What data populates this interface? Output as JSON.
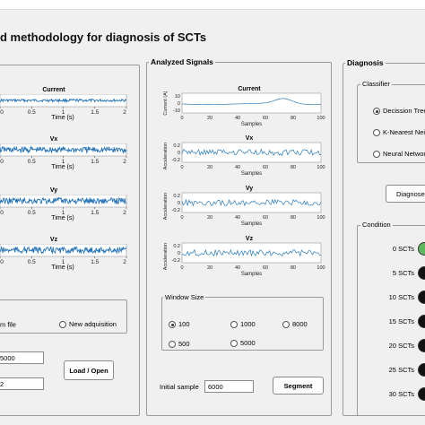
{
  "app": {
    "title": "d methodology for diagnosis of SCTs"
  },
  "left_panel": {
    "charts": [
      {
        "title": "Current",
        "xlabel": "Time (s)",
        "ticks": [
          "0",
          "0.5",
          "1",
          "1.5",
          "2"
        ]
      },
      {
        "title": "Vx",
        "xlabel": "Time (s)",
        "ticks": [
          "0",
          "0.5",
          "1",
          "1.5",
          "2"
        ]
      },
      {
        "title": "Vy",
        "xlabel": "Time (s)",
        "ticks": [
          "0",
          "0.5",
          "1",
          "1.5",
          "2"
        ]
      },
      {
        "title": "Vz",
        "xlabel": "Time (s)",
        "ticks": [
          "0",
          "0.5",
          "1",
          "1.5",
          "2"
        ]
      }
    ],
    "source": {
      "option_file": "m file",
      "option_new": "New adquisition"
    },
    "field_1": "5000",
    "field_2": "2",
    "load_button": "Load / Open"
  },
  "analyzed": {
    "title": "Analyzed Signals",
    "charts": [
      {
        "title": "Current",
        "ylabel": "Current (A)",
        "xlabel": "Samples",
        "yticks": [
          "10",
          "0",
          "-10"
        ]
      },
      {
        "title": "Vx",
        "ylabel": "Acceleration (g)",
        "xlabel": "Samples",
        "yticks": [
          "0.2",
          "0",
          "-0.2"
        ]
      },
      {
        "title": "Vy",
        "ylabel": "Acceleration (g)",
        "xlabel": "Samples",
        "yticks": [
          "0.2",
          "0",
          "-0.2"
        ]
      },
      {
        "title": "Vz",
        "ylabel": "Acceleration (g)",
        "xlabel": "Samples",
        "yticks": [
          "0.2",
          "0",
          "-0.2"
        ]
      }
    ],
    "xticks": [
      "0",
      "20",
      "40",
      "60",
      "80",
      "100"
    ],
    "window_size": {
      "title": "Window Size",
      "options": [
        "100",
        "1000",
        "8000",
        "500",
        "5000"
      ],
      "selected": "100"
    },
    "initial_sample_label": "Initial sample",
    "initial_sample_value": "6000",
    "segment_button": "Segment"
  },
  "diagnosis": {
    "title": "Diagnosis",
    "classifier_title": "Classifier",
    "classifiers": [
      "Decission Tree",
      "K-Nearest Neig",
      "Neural Network"
    ],
    "selected_classifier": "Decission Tree",
    "diagnose_button": "Diagnose",
    "condition_title": "Condition",
    "conditions": [
      "0 SCTs",
      "5 SCTs",
      "10 SCTs",
      "15 SCTs",
      "20 SCTs",
      "25 SCTs",
      "30 SCTs"
    ],
    "active_condition": "0 SCTs",
    "colors": {
      "active": "#5cb85c",
      "inactive": "#111111"
    }
  }
}
